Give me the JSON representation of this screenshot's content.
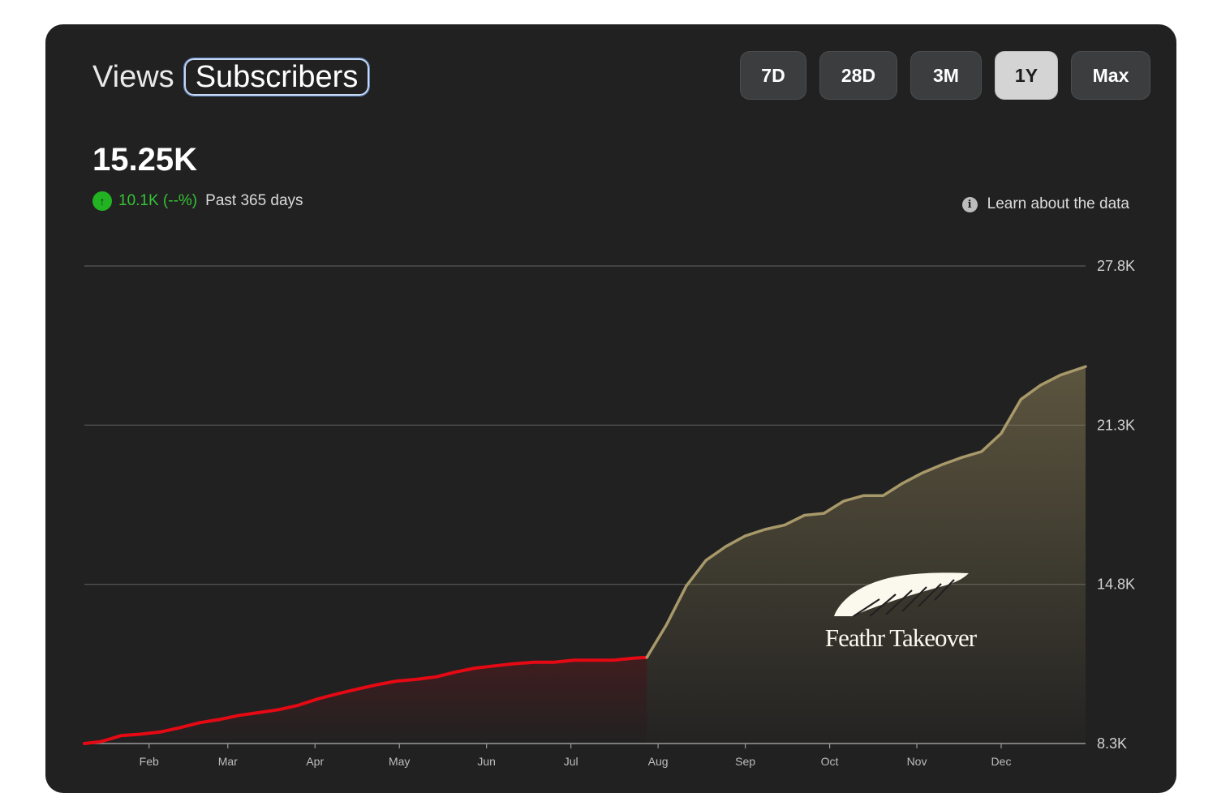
{
  "header": {
    "metric_tabs": [
      {
        "label": "Views",
        "active": false
      },
      {
        "label": "Subscribers",
        "active": true
      }
    ],
    "ranges": [
      {
        "label": "7D",
        "selected": false
      },
      {
        "label": "28D",
        "selected": false
      },
      {
        "label": "3M",
        "selected": false
      },
      {
        "label": "1Y",
        "selected": true
      },
      {
        "label": "Max",
        "selected": false
      }
    ]
  },
  "summary": {
    "value": "15.25K",
    "change_icon": "arrow-up-icon",
    "change": "10.1K (--%)",
    "period": "Past 365 days",
    "learn_icon": "info-icon",
    "learn_label": "Learn about the data"
  },
  "colors": {
    "card_bg": "#212121",
    "line_before": "#e50914",
    "line_after": "#a8996a",
    "positive": "#35c235",
    "grid": "#5a5a5a"
  },
  "brand": {
    "name": "Feathr Takeover",
    "icon": "wing-icon"
  },
  "chart_data": {
    "type": "area",
    "ylim": [
      8300,
      27800
    ],
    "y_ticks": [
      {
        "value": 27800,
        "label": "27.8K"
      },
      {
        "value": 21300,
        "label": "21.3K"
      },
      {
        "value": 14800,
        "label": "14.8K"
      },
      {
        "value": 8300,
        "label": "8.3K"
      }
    ],
    "x_ticks": [
      {
        "date": "Feb 1",
        "label": "Feb"
      },
      {
        "date": "Mar 1",
        "label": "Mar"
      },
      {
        "date": "Apr 1",
        "label": "Apr"
      },
      {
        "date": "May 1",
        "label": "May"
      },
      {
        "date": "Jun 1",
        "label": "Jun"
      },
      {
        "date": "Jul 1",
        "label": "Jul"
      },
      {
        "date": "Aug 1",
        "label": "Aug"
      },
      {
        "date": "Sep 1",
        "label": "Sep"
      },
      {
        "date": "Oct 1",
        "label": "Oct"
      },
      {
        "date": "Nov 1",
        "label": "Nov"
      },
      {
        "date": "Dec 1",
        "label": "Dec"
      }
    ],
    "series": [
      {
        "x": [
          "Jan 9",
          "Jan 15",
          "Jan 22",
          "Jan 29",
          "Feb 5",
          "Feb 12",
          "Feb 19",
          "Feb 26",
          "Mar 5",
          "Mar 12",
          "Mar 19",
          "Mar 26",
          "Apr 2",
          "Apr 9",
          "Apr 16",
          "Apr 23",
          "Apr 30",
          "May 7",
          "May 14",
          "May 21",
          "May 28",
          "Jun 4",
          "Jun 11",
          "Jun 18",
          "Jun 25",
          "Jul 2",
          "Jul 9",
          "Jul 16",
          "Jul 23",
          "Jul 28"
        ],
        "values": [
          8300,
          8380,
          8620,
          8680,
          8770,
          8950,
          9150,
          9280,
          9450,
          9560,
          9680,
          9860,
          10120,
          10330,
          10520,
          10700,
          10850,
          10920,
          11020,
          11220,
          11380,
          11470,
          11560,
          11620,
          11620,
          11700,
          11700,
          11700,
          11780,
          11820
        ]
      },
      {
        "x": [
          "Jul 28",
          "Aug 4",
          "Aug 11",
          "Aug 18",
          "Aug 25",
          "Sep 1",
          "Sep 8",
          "Sep 15",
          "Sep 22",
          "Sep 29",
          "Oct 6",
          "Oct 13",
          "Oct 20",
          "Oct 27",
          "Nov 3",
          "Nov 10",
          "Nov 17",
          "Nov 24",
          "Dec 1",
          "Dec 8",
          "Dec 15",
          "Dec 22",
          "Dec 31"
        ],
        "values": [
          11820,
          13150,
          14730,
          15780,
          16340,
          16780,
          17040,
          17220,
          17620,
          17700,
          18200,
          18420,
          18420,
          18930,
          19350,
          19690,
          19980,
          20220,
          20960,
          22350,
          22930,
          23340,
          23690
        ]
      }
    ]
  }
}
